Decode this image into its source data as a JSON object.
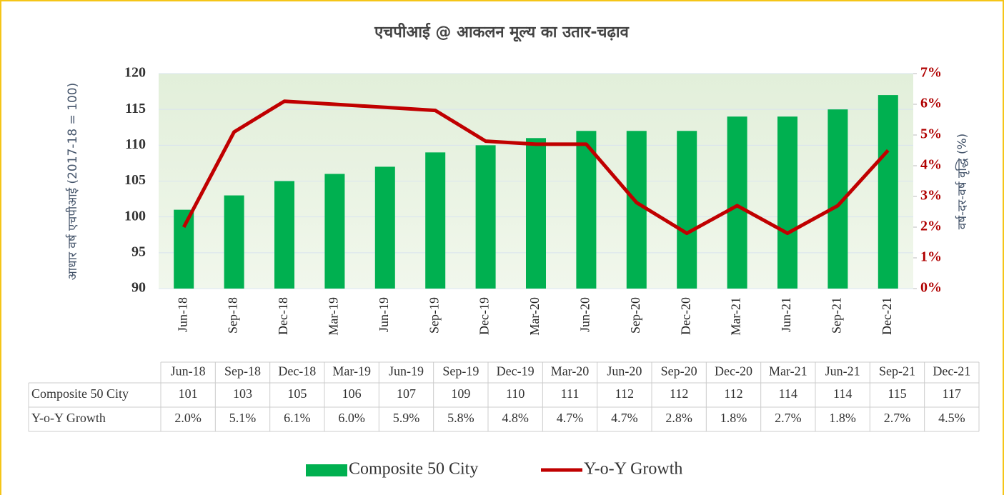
{
  "chart_data": {
    "type": "combo",
    "title": "एचपीआई @ आकलन मूल्य का उतार-चढ़ाव",
    "y_label": "आधार वर्ष एचपीआई (2017-18 = 100)",
    "y2_label": "वर्ष-दर-वर्ष वृद्धि (%)",
    "categories": [
      "Jun-18",
      "Sep-18",
      "Dec-18",
      "Mar-19",
      "Jun-19",
      "Sep-19",
      "Dec-19",
      "Mar-20",
      "Jun-20",
      "Sep-20",
      "Dec-20",
      "Mar-21",
      "Jun-21",
      "Sep-21",
      "Dec-21"
    ],
    "series": [
      {
        "name": "Composite 50 City",
        "type": "bar",
        "color": "#00b050",
        "values": [
          101,
          103,
          105,
          106,
          107,
          109,
          110,
          111,
          112,
          112,
          112,
          114,
          114,
          115,
          117
        ]
      },
      {
        "name": "Y-o-Y Growth",
        "type": "line",
        "axis": "y2",
        "color": "#c00000",
        "values": [
          2.0,
          5.1,
          6.1,
          6.0,
          5.9,
          5.8,
          4.8,
          4.7,
          4.7,
          2.8,
          1.8,
          2.7,
          1.8,
          2.7,
          4.5
        ],
        "value_labels": [
          "2.0%",
          "5.1%",
          "6.1%",
          "6.0%",
          "5.9%",
          "5.8%",
          "4.8%",
          "4.7%",
          "4.7%",
          "2.8%",
          "1.8%",
          "2.7%",
          "1.8%",
          "2.7%",
          "4.5%"
        ]
      }
    ],
    "ylim": [
      90,
      120
    ],
    "yticks": [
      90,
      95,
      100,
      105,
      110,
      115,
      120
    ],
    "y2lim": [
      0,
      7
    ],
    "y2ticks": [
      {
        "value": 0,
        "label": "0%"
      },
      {
        "value": 1,
        "label": "1%"
      },
      {
        "value": 2,
        "label": "2%"
      },
      {
        "value": 3,
        "label": "3%"
      },
      {
        "value": 4,
        "label": "4%"
      },
      {
        "value": 5,
        "label": "5%"
      },
      {
        "value": 6,
        "label": "6%"
      },
      {
        "value": 7,
        "label": "7%"
      }
    ],
    "grid": true,
    "legend": "bottom",
    "data_table": true
  }
}
